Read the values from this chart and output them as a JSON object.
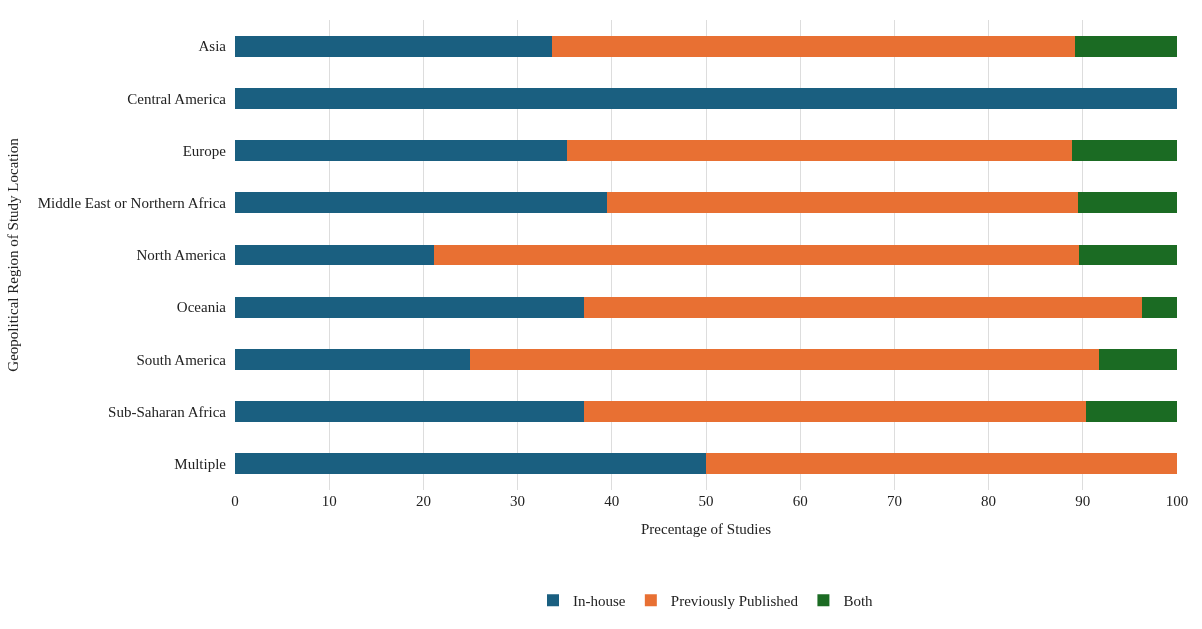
{
  "chart_data": {
    "type": "bar",
    "orientation": "horizontal",
    "stacked": true,
    "xlabel": "Precentage of Studies",
    "ylabel": "Geopolitical Region of Study Location",
    "categories": [
      "Asia",
      "Central America",
      "Europe",
      "Middle East or Northern Africa",
      "North America",
      "Oceania",
      "South America",
      "Sub-Saharan Africa",
      "Multiple"
    ],
    "series": [
      {
        "name": "In-house",
        "color": "#1a5f80",
        "values": [
          33.7,
          100,
          35.2,
          39.5,
          21.1,
          37.1,
          24.9,
          37.0,
          50
        ]
      },
      {
        "name": "Previously Published",
        "color": "#e87033",
        "values": [
          55.5,
          0,
          53.6,
          50.0,
          68.5,
          59.2,
          66.8,
          53.3,
          50
        ]
      },
      {
        "name": "Both",
        "color": "#1b6b23",
        "values": [
          10.8,
          0,
          11.2,
          10.5,
          10.4,
          3.7,
          8.3,
          9.7,
          0
        ]
      }
    ],
    "xlim": [
      0,
      100
    ],
    "xticks": [
      0,
      10,
      20,
      30,
      40,
      50,
      60,
      70,
      80,
      90,
      100
    ],
    "grid": "x",
    "legend": "bottom"
  }
}
